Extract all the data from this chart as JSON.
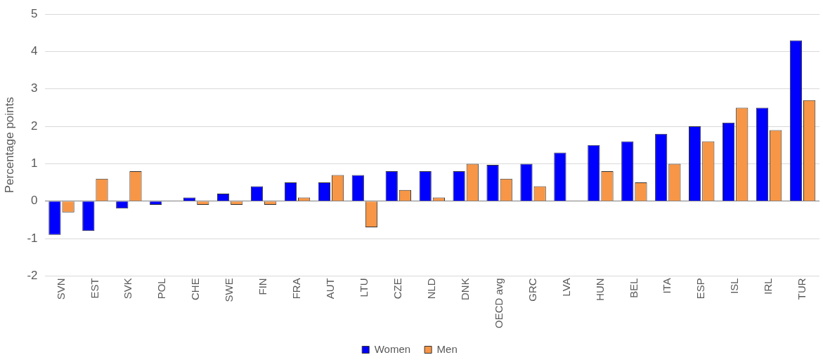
{
  "chart_data": {
    "type": "bar",
    "ylabel": "Percentage points",
    "categories": [
      "SVN",
      "EST",
      "SVK",
      "POL",
      "CHE",
      "SWE",
      "FIN",
      "FRA",
      "AUT",
      "LTU",
      "CZE",
      "NLD",
      "DNK",
      "OECD avg",
      "GRC",
      "LVA",
      "HUN",
      "BEL",
      "ITA",
      "ESP",
      "ISL",
      "IRL",
      "TUR"
    ],
    "series": [
      {
        "name": "Women",
        "color": "#0000ff",
        "values": [
          -0.9,
          -0.8,
          -0.2,
          -0.1,
          0.1,
          0.2,
          0.4,
          0.5,
          0.5,
          0.7,
          0.8,
          0.8,
          0.8,
          0.97,
          1.0,
          1.3,
          1.5,
          1.6,
          1.8,
          2.0,
          2.1,
          2.5,
          4.3
        ]
      },
      {
        "name": "Men",
        "color": "#f79646",
        "values": [
          -0.3,
          0.6,
          0.8,
          0,
          -0.1,
          -0.1,
          -0.1,
          0.1,
          0.7,
          -0.7,
          0.3,
          0.1,
          1.0,
          0.6,
          0.4,
          0,
          0.8,
          0.5,
          1.0,
          1.6,
          2.5,
          1.9,
          2.7
        ]
      }
    ],
    "ylim": [
      -2,
      5
    ],
    "yticks": [
      -2,
      -1,
      0,
      1,
      2,
      3,
      4,
      5
    ],
    "grid": "y",
    "legend": "bottom"
  }
}
